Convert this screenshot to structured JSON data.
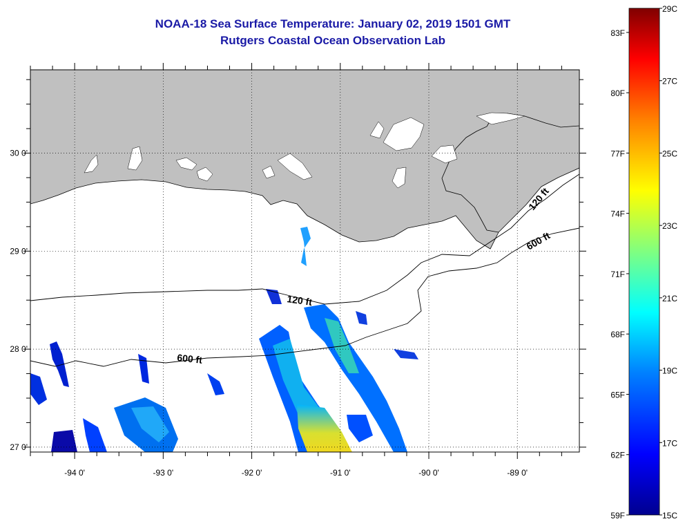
{
  "title": {
    "line1": "NOAA-18 Sea Surface Temperature:  January 02, 2019 1501 GMT",
    "line2": "Rutgers Coastal Ocean Observation Lab",
    "color": "#1a1aa6"
  },
  "map": {
    "land_color": "#c0c0c0",
    "lat_labels": [
      "30 0'",
      "29 0'",
      "28 0'",
      "27 0'"
    ],
    "lon_labels": [
      "-94 0'",
      "-93 0'",
      "-92 0'",
      "-91 0'",
      "-90 0'",
      "-89 0'"
    ],
    "contour_labels": [
      "120 ft",
      "600 ft",
      "120 ft",
      "600 ft"
    ]
  },
  "colorbar": {
    "fahrenheit_labels": [
      "83F",
      "80F",
      "77F",
      "74F",
      "71F",
      "68F",
      "65F",
      "62F",
      "59F"
    ],
    "celsius_labels": [
      "29C",
      "27C",
      "25C",
      "23C",
      "21C",
      "19C",
      "17C",
      "15C"
    ],
    "range_c": [
      15,
      29
    ],
    "colors": [
      "#00008f",
      "#0000ff",
      "#0080ff",
      "#00ffff",
      "#80ff80",
      "#ffff00",
      "#ff8000",
      "#ff0000",
      "#800000"
    ]
  },
  "chart_data": {
    "type": "heatmap",
    "title": "NOAA-18 Sea Surface Temperature:  January 02, 2019 1501 GMT",
    "subtitle": "Rutgers Coastal Ocean Observation Lab",
    "xlim": [
      -94.5,
      -88.3
    ],
    "ylim": [
      26.95,
      30.85
    ],
    "x_ticks": [
      -94,
      -93,
      -92,
      -91,
      -90,
      -89
    ],
    "y_ticks": [
      30,
      29,
      28,
      27
    ],
    "value_range_c": [
      15,
      29
    ],
    "value_range_f": [
      59,
      84
    ],
    "grid": true
  }
}
